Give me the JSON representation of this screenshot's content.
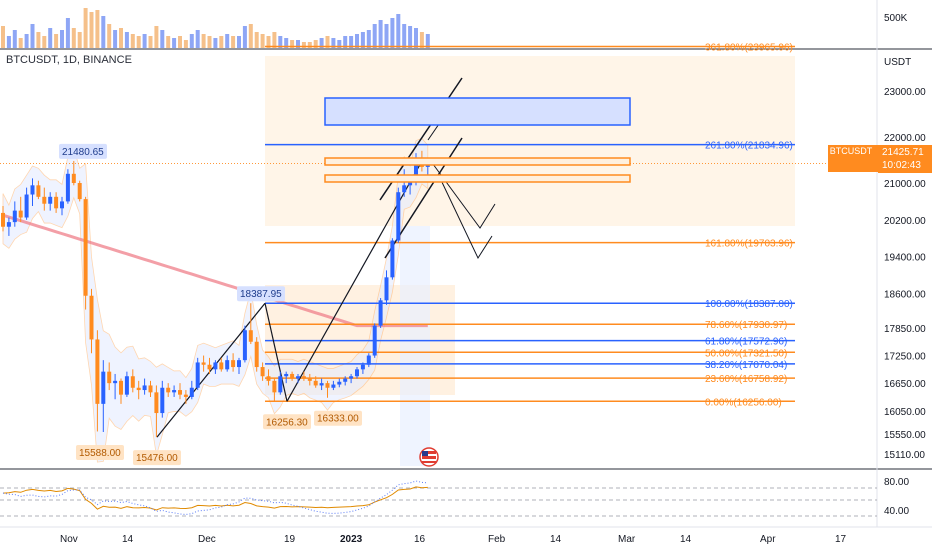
{
  "symbol": "BTCUSDT, 1D, BINANCE",
  "current_price": "21425.71",
  "countdown": "10:02:43",
  "symbol_tag": "BTCUSDT",
  "volume_axis_label": "500K",
  "price_unit": "USDT",
  "price_axis_ticks": [
    "23000.00",
    "22000.00",
    "21000.00",
    "20200.00",
    "19400.00",
    "18600.00",
    "17850.00",
    "17250.00",
    "16650.00",
    "16050.00",
    "15550.00",
    "15110.00"
  ],
  "indicator_axis_ticks": [
    "80.00",
    "40.00"
  ],
  "time_axis": [
    "Nov",
    "14",
    "Dec",
    "19",
    "2023",
    "16",
    "Feb",
    "14",
    "Mar",
    "14",
    "Apr",
    "17"
  ],
  "fib_levels": [
    {
      "label": "361.80%(23965.96)",
      "price": 23965.96,
      "color": "#ff8b1f"
    },
    {
      "label": "261.80%(21834.96)",
      "price": 21834.96,
      "color": "#2962ff"
    },
    {
      "label": "161.80%(19703.96)",
      "price": 19703.96,
      "color": "#ff8b1f"
    },
    {
      "label": "100.00%(18387.00)",
      "price": 18387.0,
      "color": "#2962ff"
    },
    {
      "label": "78.60%(17930.97)",
      "price": 17930.97,
      "color": "#ff8b1f"
    },
    {
      "label": "61.80%(17572.96)",
      "price": 17572.96,
      "color": "#2962ff"
    },
    {
      "label": "50.00%(17321.50)",
      "price": 17321.5,
      "color": "#ff8b1f"
    },
    {
      "label": "38.20%(17070.04)",
      "price": 17070.04,
      "color": "#2962ff"
    },
    {
      "label": "23.60%(16758.92)",
      "price": 16758.92,
      "color": "#ff8b1f"
    },
    {
      "label": "0.00%(16256.00)",
      "price": 16256.0,
      "color": "#ff8b1f"
    }
  ],
  "price_callouts": [
    {
      "label": "21480.65",
      "price": 21480.65,
      "color": "#2962ff"
    },
    {
      "label": "18387.95",
      "price": 18387.95,
      "color": "#2962ff"
    },
    {
      "label": "15588.00",
      "price": 15588.0,
      "color": "#ff8b1f"
    },
    {
      "label": "15476.00",
      "price": 15476.0,
      "color": "#ff8b1f"
    },
    {
      "label": "16256.30",
      "price": 16256.3,
      "color": "#ff8b1f"
    },
    {
      "label": "16333.00",
      "price": 16333.0,
      "color": "#ff8b1f"
    }
  ],
  "colors": {
    "bull": "#2962ff",
    "bear": "#ff8b1f",
    "ma": "#ef7f8a",
    "fib_orange": "#ff8b1f",
    "fib_blue": "#2962ff"
  },
  "chart_data": {
    "type": "candlestick",
    "bar_interval": "1D",
    "candles": [
      {
        "o": 20350,
        "h": 20500,
        "l": 19950,
        "c": 20050
      },
      {
        "o": 20050,
        "h": 20250,
        "l": 19850,
        "c": 20150
      },
      {
        "o": 20150,
        "h": 20600,
        "l": 20050,
        "c": 20400
      },
      {
        "o": 20400,
        "h": 20700,
        "l": 20150,
        "c": 20250
      },
      {
        "o": 20250,
        "h": 20900,
        "l": 20200,
        "c": 20750
      },
      {
        "o": 20750,
        "h": 21100,
        "l": 20500,
        "c": 20950
      },
      {
        "o": 20950,
        "h": 21050,
        "l": 20650,
        "c": 20700
      },
      {
        "o": 20700,
        "h": 20900,
        "l": 20400,
        "c": 20550
      },
      {
        "o": 20550,
        "h": 20800,
        "l": 20400,
        "c": 20700
      },
      {
        "o": 20700,
        "h": 20800,
        "l": 20350,
        "c": 20450
      },
      {
        "o": 20450,
        "h": 20700,
        "l": 20300,
        "c": 20600
      },
      {
        "o": 20600,
        "h": 21300,
        "l": 20550,
        "c": 21200
      },
      {
        "o": 21200,
        "h": 21480,
        "l": 20950,
        "c": 21000
      },
      {
        "o": 21000,
        "h": 21050,
        "l": 20600,
        "c": 20650
      },
      {
        "o": 20650,
        "h": 20700,
        "l": 18250,
        "c": 18550
      },
      {
        "o": 18550,
        "h": 18700,
        "l": 17300,
        "c": 17600
      },
      {
        "o": 17600,
        "h": 17800,
        "l": 15600,
        "c": 16200
      },
      {
        "o": 16200,
        "h": 17150,
        "l": 15588,
        "c": 16900
      },
      {
        "o": 16900,
        "h": 17100,
        "l": 16500,
        "c": 16650
      },
      {
        "o": 16650,
        "h": 16850,
        "l": 16300,
        "c": 16700
      },
      {
        "o": 16700,
        "h": 16750,
        "l": 16200,
        "c": 16400
      },
      {
        "o": 16400,
        "h": 16900,
        "l": 16350,
        "c": 16800
      },
      {
        "o": 16800,
        "h": 16950,
        "l": 16450,
        "c": 16550
      },
      {
        "o": 16550,
        "h": 16700,
        "l": 16300,
        "c": 16500
      },
      {
        "o": 16500,
        "h": 16750,
        "l": 16400,
        "c": 16600
      },
      {
        "o": 16600,
        "h": 16700,
        "l": 16350,
        "c": 16450
      },
      {
        "o": 16450,
        "h": 16600,
        "l": 15476,
        "c": 16000
      },
      {
        "o": 16000,
        "h": 16700,
        "l": 15900,
        "c": 16550
      },
      {
        "o": 16550,
        "h": 16650,
        "l": 16350,
        "c": 16450
      },
      {
        "o": 16450,
        "h": 16600,
        "l": 16350,
        "c": 16500
      },
      {
        "o": 16500,
        "h": 16650,
        "l": 16300,
        "c": 16400
      },
      {
        "o": 16400,
        "h": 16500,
        "l": 16200,
        "c": 16350
      },
      {
        "o": 16350,
        "h": 16700,
        "l": 16300,
        "c": 16550
      },
      {
        "o": 16550,
        "h": 17200,
        "l": 16500,
        "c": 17100
      },
      {
        "o": 17100,
        "h": 17250,
        "l": 16900,
        "c": 17050
      },
      {
        "o": 17050,
        "h": 17200,
        "l": 16850,
        "c": 16950
      },
      {
        "o": 16950,
        "h": 17150,
        "l": 16850,
        "c": 17100
      },
      {
        "o": 17100,
        "h": 17200,
        "l": 16900,
        "c": 16950
      },
      {
        "o": 16950,
        "h": 17250,
        "l": 16900,
        "c": 17150
      },
      {
        "o": 17150,
        "h": 17300,
        "l": 16900,
        "c": 17000
      },
      {
        "o": 17000,
        "h": 17200,
        "l": 16850,
        "c": 17150
      },
      {
        "o": 17150,
        "h": 17900,
        "l": 17100,
        "c": 17800
      },
      {
        "o": 17800,
        "h": 18387.95,
        "l": 17500,
        "c": 17550
      },
      {
        "o": 17550,
        "h": 17650,
        "l": 16900,
        "c": 17000
      },
      {
        "o": 17000,
        "h": 17100,
        "l": 16700,
        "c": 16800
      },
      {
        "o": 16800,
        "h": 16950,
        "l": 16600,
        "c": 16700
      },
      {
        "o": 16700,
        "h": 16750,
        "l": 16256.3,
        "c": 16450
      },
      {
        "o": 16450,
        "h": 16900,
        "l": 16400,
        "c": 16800
      },
      {
        "o": 16800,
        "h": 16900,
        "l": 16650,
        "c": 16850
      },
      {
        "o": 16850,
        "h": 16900,
        "l": 16700,
        "c": 16750
      },
      {
        "o": 16750,
        "h": 16850,
        "l": 16650,
        "c": 16800
      },
      {
        "o": 16800,
        "h": 16900,
        "l": 16700,
        "c": 16750
      },
      {
        "o": 16750,
        "h": 16850,
        "l": 16600,
        "c": 16700
      },
      {
        "o": 16700,
        "h": 16800,
        "l": 16550,
        "c": 16600
      },
      {
        "o": 16600,
        "h": 16750,
        "l": 16500,
        "c": 16650
      },
      {
        "o": 16650,
        "h": 16700,
        "l": 16333,
        "c": 16550
      },
      {
        "o": 16550,
        "h": 16700,
        "l": 16500,
        "c": 16620
      },
      {
        "o": 16620,
        "h": 16750,
        "l": 16560,
        "c": 16680
      },
      {
        "o": 16680,
        "h": 16800,
        "l": 16600,
        "c": 16750
      },
      {
        "o": 16750,
        "h": 16850,
        "l": 16650,
        "c": 16800
      },
      {
        "o": 16800,
        "h": 17000,
        "l": 16750,
        "c": 16950
      },
      {
        "o": 16950,
        "h": 17100,
        "l": 16850,
        "c": 17050
      },
      {
        "o": 17050,
        "h": 17300,
        "l": 17000,
        "c": 17250
      },
      {
        "o": 17250,
        "h": 17950,
        "l": 17200,
        "c": 17900
      },
      {
        "o": 17900,
        "h": 18500,
        "l": 17850,
        "c": 18450
      },
      {
        "o": 18450,
        "h": 19100,
        "l": 18350,
        "c": 18950
      },
      {
        "o": 18950,
        "h": 19800,
        "l": 18900,
        "c": 19750
      },
      {
        "o": 19750,
        "h": 20900,
        "l": 19700,
        "c": 20800
      },
      {
        "o": 20800,
        "h": 21300,
        "l": 20700,
        "c": 20950
      },
      {
        "o": 20950,
        "h": 21100,
        "l": 20750,
        "c": 21050
      },
      {
        "o": 21050,
        "h": 21650,
        "l": 20950,
        "c": 21550
      },
      {
        "o": 21550,
        "h": 21700,
        "l": 21250,
        "c": 21350
      },
      {
        "o": 21350,
        "h": 21550,
        "l": 21150,
        "c": 21425.71
      }
    ],
    "volume_bars": [
      0.55,
      0.3,
      0.45,
      0.25,
      0.35,
      0.6,
      0.4,
      0.3,
      0.5,
      0.35,
      0.45,
      0.75,
      0.5,
      0.4,
      1.0,
      0.9,
      0.95,
      0.8,
      0.6,
      0.45,
      0.5,
      0.4,
      0.35,
      0.3,
      0.35,
      0.3,
      0.55,
      0.45,
      0.3,
      0.25,
      0.3,
      0.2,
      0.35,
      0.45,
      0.35,
      0.3,
      0.25,
      0.3,
      0.35,
      0.3,
      0.3,
      0.55,
      0.6,
      0.4,
      0.35,
      0.3,
      0.4,
      0.3,
      0.25,
      0.2,
      0.2,
      0.15,
      0.15,
      0.2,
      0.25,
      0.3,
      0.25,
      0.2,
      0.3,
      0.3,
      0.35,
      0.4,
      0.45,
      0.6,
      0.7,
      0.6,
      0.75,
      0.85,
      0.6,
      0.55,
      0.5,
      0.4,
      0.35
    ]
  }
}
